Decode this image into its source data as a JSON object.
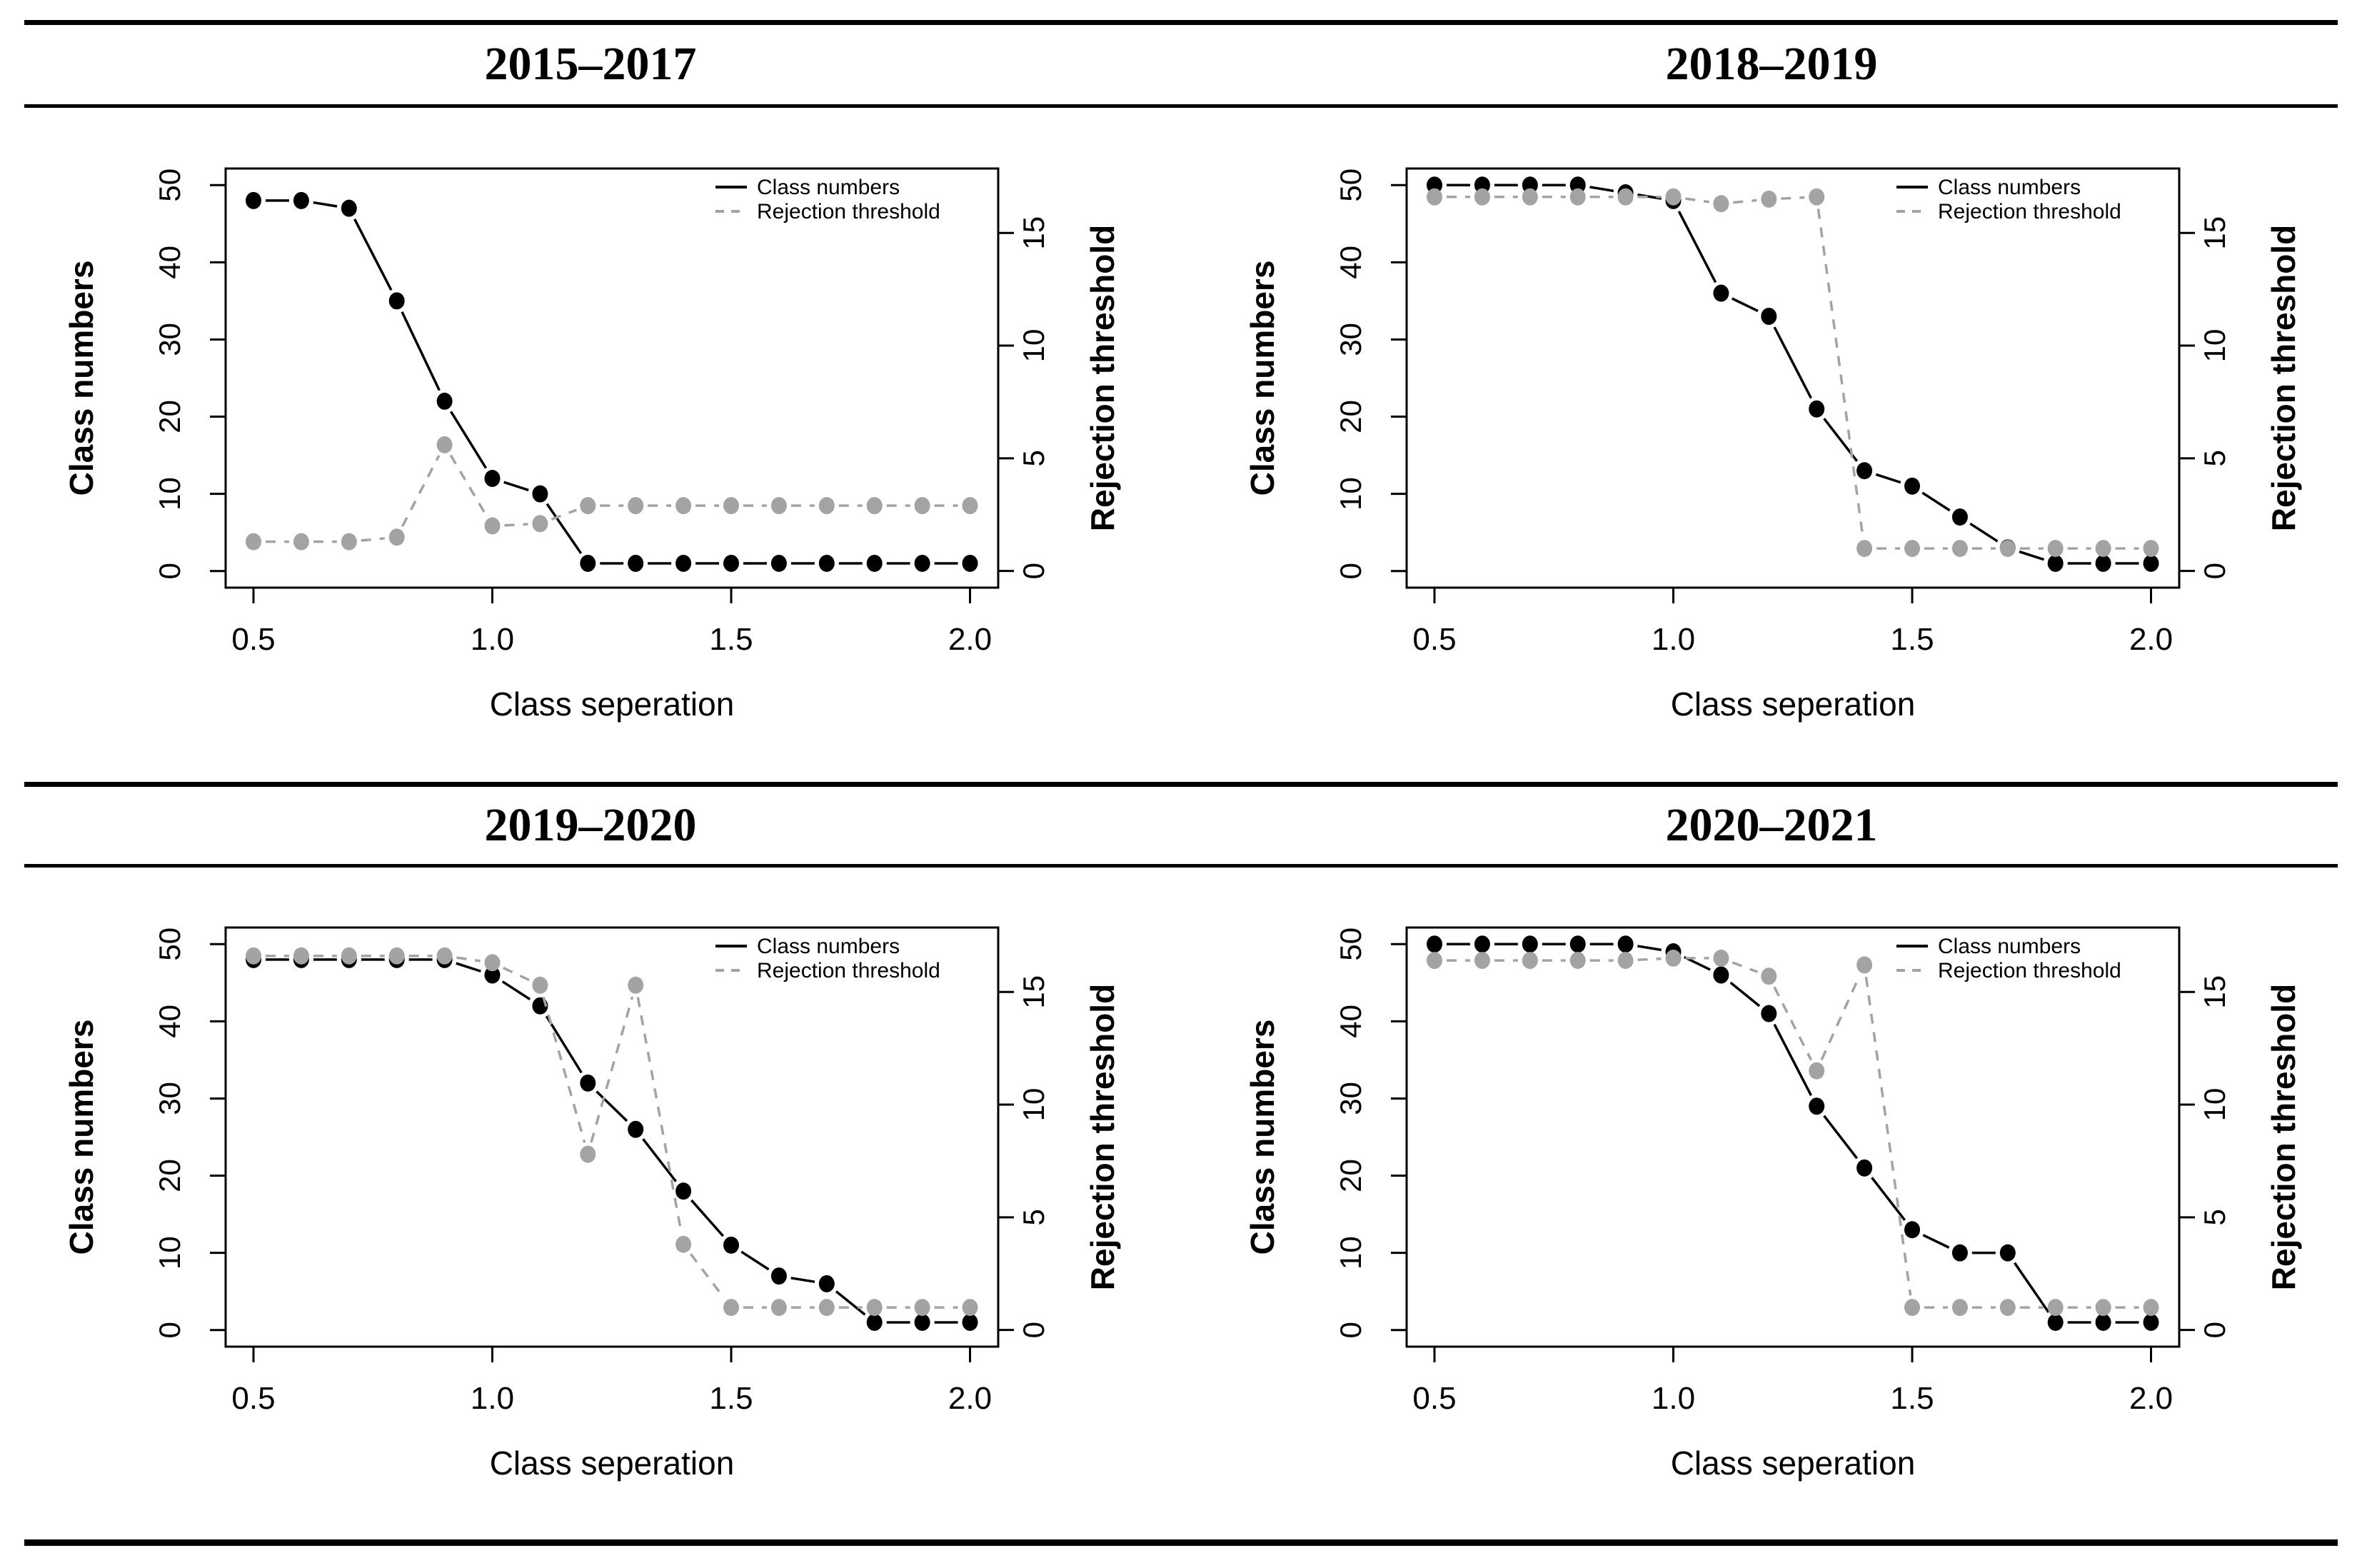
{
  "figure": {
    "background": "#ffffff",
    "rule_color": "#000000",
    "text_color": "#000000"
  },
  "chart_data": [
    {
      "type": "line",
      "title": "2015–2017",
      "xlabel": "Class seperation",
      "ylabel_left": "Class numbers",
      "ylabel_right": "Rejection threshold",
      "legend": [
        "Class numbers",
        "Rejection threshold"
      ],
      "legend_position": "top-right-inside",
      "grid": false,
      "x": [
        0.5,
        0.6,
        0.7,
        0.8,
        0.9,
        1.0,
        1.1,
        1.2,
        1.3,
        1.4,
        1.5,
        1.6,
        1.7,
        1.8,
        1.9,
        2.0
      ],
      "xticks": [
        0.5,
        1.0,
        1.5,
        2.0
      ],
      "xtick_labels": [
        "0.5",
        "1.0",
        "1.5",
        "2.0"
      ],
      "xlim": [
        0.4417,
        2.059
      ],
      "yticks_left": [
        0,
        10,
        20,
        30,
        40,
        50
      ],
      "ylim_left": [
        -2.15,
        52.15
      ],
      "yticks_right": [
        0,
        5,
        10,
        15
      ],
      "ylim_right": [
        -0.74,
        17.86
      ],
      "series": [
        {
          "name": "Class numbers",
          "axis": "left",
          "color": "#000000",
          "line_style": "solid",
          "values": [
            48,
            48,
            47,
            35,
            22,
            12,
            10,
            1,
            1,
            1,
            1,
            1,
            1,
            1,
            1,
            1
          ]
        },
        {
          "name": "Rejection threshold",
          "axis": "right",
          "color": "#a3a3a3",
          "line_style": "dashed",
          "values": [
            1.3,
            1.3,
            1.3,
            1.5,
            5.6,
            2.0,
            2.1,
            2.9,
            2.9,
            2.9,
            2.9,
            2.9,
            2.9,
            2.9,
            2.9,
            2.9
          ]
        }
      ]
    },
    {
      "type": "line",
      "title": "2018–2019",
      "xlabel": "Class seperation",
      "ylabel_left": "Class numbers",
      "ylabel_right": "Rejection threshold",
      "legend": [
        "Class numbers",
        "Rejection threshold"
      ],
      "legend_position": "top-right-inside",
      "grid": false,
      "x": [
        0.5,
        0.6,
        0.7,
        0.8,
        0.9,
        1.0,
        1.1,
        1.2,
        1.3,
        1.4,
        1.5,
        1.6,
        1.7,
        1.8,
        1.9,
        2.0
      ],
      "xticks": [
        0.5,
        1.0,
        1.5,
        2.0
      ],
      "xtick_labels": [
        "0.5",
        "1.0",
        "1.5",
        "2.0"
      ],
      "xlim": [
        0.4417,
        2.059
      ],
      "yticks_left": [
        0,
        10,
        20,
        30,
        40,
        50
      ],
      "ylim_left": [
        -2.15,
        52.15
      ],
      "yticks_right": [
        0,
        5,
        10,
        15
      ],
      "ylim_right": [
        -0.74,
        17.86
      ],
      "series": [
        {
          "name": "Class numbers",
          "axis": "left",
          "color": "#000000",
          "line_style": "solid",
          "values": [
            50,
            50,
            50,
            50,
            49,
            48,
            36,
            33,
            21,
            13,
            11,
            7,
            3,
            1,
            1,
            1
          ]
        },
        {
          "name": "Rejection threshold",
          "axis": "right",
          "color": "#a3a3a3",
          "line_style": "dashed",
          "values": [
            16.6,
            16.6,
            16.6,
            16.6,
            16.6,
            16.6,
            16.3,
            16.5,
            16.6,
            1.0,
            1.0,
            1.0,
            1.0,
            1.0,
            1.0,
            1.0
          ]
        }
      ]
    },
    {
      "type": "line",
      "title": "2019–2020",
      "xlabel": "Class seperation",
      "ylabel_left": "Class numbers",
      "ylabel_right": "Rejection threshold",
      "legend": [
        "Class numbers",
        "Rejection threshold"
      ],
      "legend_position": "top-right-inside",
      "grid": false,
      "x": [
        0.5,
        0.6,
        0.7,
        0.8,
        0.9,
        1.0,
        1.1,
        1.2,
        1.3,
        1.4,
        1.5,
        1.6,
        1.7,
        1.8,
        1.9,
        2.0
      ],
      "xticks": [
        0.5,
        1.0,
        1.5,
        2.0
      ],
      "xtick_labels": [
        "0.5",
        "1.0",
        "1.5",
        "2.0"
      ],
      "xlim": [
        0.4417,
        2.059
      ],
      "yticks_left": [
        0,
        10,
        20,
        30,
        40,
        50
      ],
      "ylim_left": [
        -2.15,
        52.15
      ],
      "yticks_right": [
        0,
        5,
        10,
        15
      ],
      "ylim_right": [
        -0.74,
        17.86
      ],
      "series": [
        {
          "name": "Class numbers",
          "axis": "left",
          "color": "#000000",
          "line_style": "solid",
          "values": [
            48,
            48,
            48,
            48,
            48,
            46,
            42,
            32,
            26,
            18,
            11,
            7,
            6,
            1,
            1,
            1
          ]
        },
        {
          "name": "Rejection threshold",
          "axis": "right",
          "color": "#a3a3a3",
          "line_style": "dashed",
          "values": [
            16.6,
            16.6,
            16.6,
            16.6,
            16.6,
            16.3,
            15.3,
            7.8,
            15.3,
            3.8,
            1.0,
            1.0,
            1.0,
            1.0,
            1.0,
            1.0
          ]
        }
      ]
    },
    {
      "type": "line",
      "title": "2020–2021",
      "xlabel": "Class seperation",
      "ylabel_left": "Class numbers",
      "ylabel_right": "Rejection threshold",
      "legend": [
        "Class numbers",
        "Rejection threshold"
      ],
      "legend_position": "top-right-inside",
      "grid": false,
      "x": [
        0.5,
        0.6,
        0.7,
        0.8,
        0.9,
        1.0,
        1.1,
        1.2,
        1.3,
        1.4,
        1.5,
        1.6,
        1.7,
        1.8,
        1.9,
        2.0
      ],
      "xticks": [
        0.5,
        1.0,
        1.5,
        2.0
      ],
      "xtick_labels": [
        "0.5",
        "1.0",
        "1.5",
        "2.0"
      ],
      "xlim": [
        0.4417,
        2.059
      ],
      "yticks_left": [
        0,
        10,
        20,
        30,
        40,
        50
      ],
      "ylim_left": [
        -2.15,
        52.15
      ],
      "yticks_right": [
        0,
        5,
        10,
        15
      ],
      "ylim_right": [
        -0.74,
        17.86
      ],
      "series": [
        {
          "name": "Class numbers",
          "axis": "left",
          "color": "#000000",
          "line_style": "solid",
          "values": [
            50,
            50,
            50,
            50,
            50,
            49,
            46,
            41,
            29,
            21,
            13,
            10,
            10,
            1,
            1,
            1
          ]
        },
        {
          "name": "Rejection threshold",
          "axis": "right",
          "color": "#a3a3a3",
          "line_style": "dashed",
          "values": [
            16.4,
            16.4,
            16.4,
            16.4,
            16.4,
            16.5,
            16.5,
            15.7,
            11.5,
            16.2,
            1.0,
            1.0,
            1.0,
            1.0,
            1.0,
            1.0
          ]
        }
      ]
    }
  ]
}
